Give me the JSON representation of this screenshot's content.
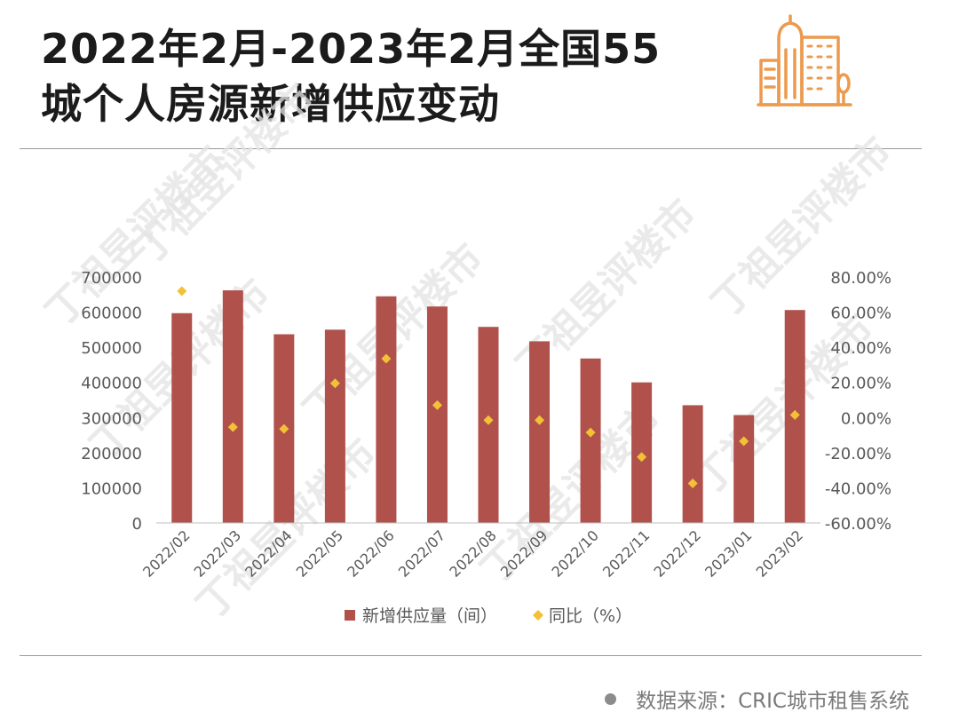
{
  "header": {
    "title_line1": "2022年2月-2023年2月全国55",
    "title_line2": "城个人房源新增供应变动"
  },
  "icons": {
    "logo": "city-buildings-icon",
    "source_bullet": "circle-bullet-icon"
  },
  "chart_data": {
    "type": "bar",
    "categories": [
      "2022/02",
      "2022/03",
      "2022/04",
      "2022/05",
      "2022/06",
      "2022/07",
      "2022/08",
      "2022/09",
      "2022/10",
      "2022/11",
      "2022/12",
      "2023/01",
      "2023/02"
    ],
    "series": [
      {
        "name": "新增供应量（间）",
        "type": "bar",
        "axis": "left",
        "values": [
          597000,
          662000,
          537000,
          550000,
          645000,
          616000,
          558000,
          517000,
          468000,
          400000,
          335000,
          307000,
          606000
        ]
      },
      {
        "name": "同比（%）",
        "type": "scatter",
        "axis": "right",
        "values": [
          72.0,
          -5.5,
          -6.5,
          19.5,
          33.5,
          7.0,
          -1.5,
          -1.5,
          -8.5,
          -22.5,
          -37.5,
          -13.5,
          1.5
        ]
      }
    ],
    "y_left": {
      "min": 0,
      "max": 700000,
      "ticks": [
        0,
        100000,
        200000,
        300000,
        400000,
        500000,
        600000,
        700000
      ],
      "tick_labels": [
        "0",
        "100000",
        "200000",
        "300000",
        "400000",
        "500000",
        "600000",
        "700000"
      ]
    },
    "y_right": {
      "min": -60,
      "max": 80,
      "ticks": [
        -60,
        -40,
        -20,
        0,
        20,
        40,
        60,
        80
      ],
      "tick_labels": [
        "-60.00%",
        "-40.00%",
        "-20.00%",
        "0.00%",
        "20.00%",
        "40.00%",
        "60.00%",
        "80.00%"
      ]
    },
    "grid": false,
    "legend_position": "bottom",
    "colors": {
      "bar": "#b0514c",
      "marker": "#f3c136",
      "axis_text": "#595959"
    }
  },
  "watermark": {
    "text": "丁祖昱评楼市",
    "color": "#e4e4e4"
  },
  "footer": {
    "source_text": "数据来源：CRIC城市租售系统"
  }
}
